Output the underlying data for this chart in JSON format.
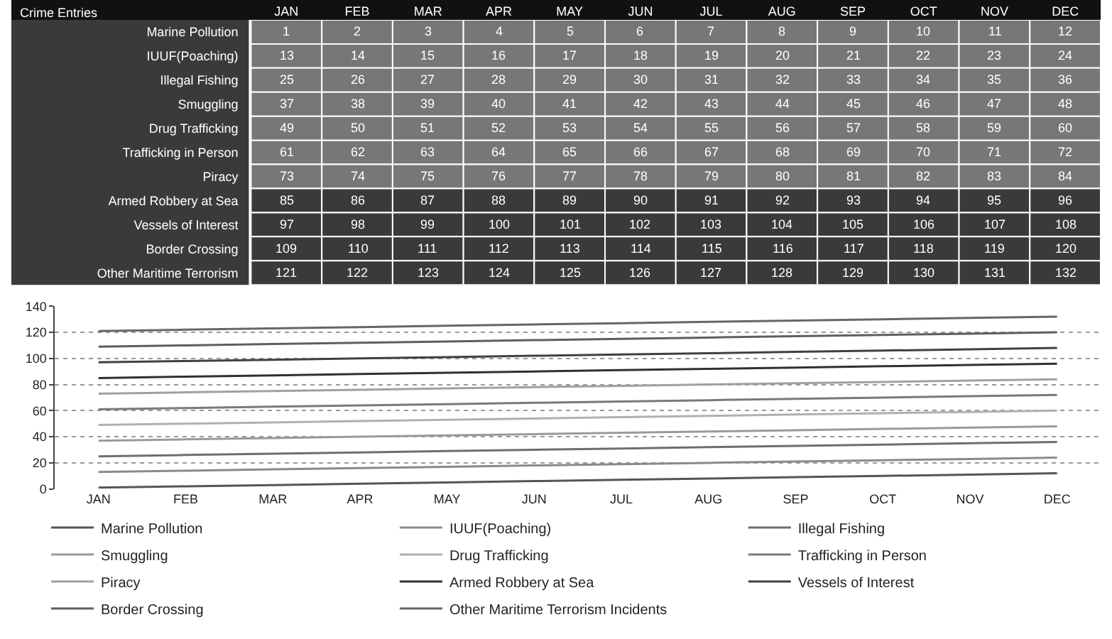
{
  "chart_data": [
    {
      "type": "heatmap",
      "annotations": [
        "Crime Entries"
      ],
      "data_labels": true,
      "categories": [
        "JAN",
        "FEB",
        "MAR",
        "APR",
        "MAY",
        "JUN",
        "JUL",
        "AUG",
        "SEP",
        "OCT",
        "NOV",
        "DEC"
      ],
      "y_categories": [
        "Marine Pollution",
        "IUUF(Poaching)",
        "Illegal Fishing",
        "Smuggling",
        "Drug Trafficking",
        "Trafficking in Person",
        "Piracy",
        "Armed Robbery at Sea",
        "Vessels of Interest",
        "Border Crossing",
        "Other Maritime Terrorism"
      ],
      "cells": [
        [
          1,
          2,
          3,
          4,
          5,
          6,
          7,
          8,
          9,
          10,
          11,
          12
        ],
        [
          13,
          14,
          15,
          16,
          17,
          18,
          19,
          20,
          21,
          22,
          23,
          24
        ],
        [
          25,
          26,
          27,
          28,
          29,
          30,
          31,
          32,
          33,
          34,
          35,
          36
        ],
        [
          37,
          38,
          39,
          40,
          41,
          42,
          43,
          44,
          45,
          46,
          47,
          48
        ],
        [
          49,
          50,
          51,
          52,
          53,
          54,
          55,
          56,
          57,
          58,
          59,
          60
        ],
        [
          61,
          62,
          63,
          64,
          65,
          66,
          67,
          68,
          69,
          70,
          71,
          72
        ],
        [
          73,
          74,
          75,
          76,
          77,
          78,
          79,
          80,
          81,
          82,
          83,
          84
        ],
        [
          85,
          86,
          87,
          88,
          89,
          90,
          91,
          92,
          93,
          94,
          95,
          96
        ],
        [
          97,
          98,
          99,
          100,
          101,
          102,
          103,
          104,
          105,
          106,
          107,
          108
        ],
        [
          109,
          110,
          111,
          112,
          113,
          114,
          115,
          116,
          117,
          118,
          119,
          120
        ],
        [
          121,
          122,
          123,
          124,
          125,
          126,
          127,
          128,
          129,
          130,
          131,
          132
        ]
      ]
    },
    {
      "type": "line",
      "categories": [
        "JAN",
        "FEB",
        "MAR",
        "APR",
        "MAY",
        "JUN",
        "JUL",
        "AUG",
        "SEP",
        "OCT",
        "NOV",
        "DEC"
      ],
      "series": [
        {
          "name": "Marine Pollution",
          "color": "#555555",
          "values": [
            1,
            2,
            3,
            4,
            5,
            6,
            7,
            8,
            9,
            10,
            11,
            12
          ]
        },
        {
          "name": "IUUF(Poaching)",
          "color": "#8a8a8a",
          "values": [
            13,
            14,
            15,
            16,
            17,
            18,
            19,
            20,
            21,
            22,
            23,
            24
          ]
        },
        {
          "name": "Illegal Fishing",
          "color": "#6e6e6e",
          "values": [
            25,
            26,
            27,
            28,
            29,
            30,
            31,
            32,
            33,
            34,
            35,
            36
          ]
        },
        {
          "name": "Smuggling",
          "color": "#9a9a9a",
          "values": [
            37,
            38,
            39,
            40,
            41,
            42,
            43,
            44,
            45,
            46,
            47,
            48
          ]
        },
        {
          "name": "Drug Trafficking",
          "color": "#b0b0b0",
          "values": [
            49,
            50,
            51,
            52,
            53,
            54,
            55,
            56,
            57,
            58,
            59,
            60
          ]
        },
        {
          "name": "Trafficking in Person",
          "color": "#7a7a7a",
          "values": [
            61,
            62,
            63,
            64,
            65,
            66,
            67,
            68,
            69,
            70,
            71,
            72
          ]
        },
        {
          "name": "Piracy",
          "color": "#a0a0a0",
          "values": [
            73,
            74,
            75,
            76,
            77,
            78,
            79,
            80,
            81,
            82,
            83,
            84
          ]
        },
        {
          "name": "Armed Robbery at Sea",
          "color": "#303030",
          "values": [
            85,
            86,
            87,
            88,
            89,
            90,
            91,
            92,
            93,
            94,
            95,
            96
          ]
        },
        {
          "name": "Vessels of Interest",
          "color": "#404040",
          "values": [
            97,
            98,
            99,
            100,
            101,
            102,
            103,
            104,
            105,
            106,
            107,
            108
          ]
        },
        {
          "name": "Border Crossing",
          "color": "#5e5e5e",
          "values": [
            109,
            110,
            111,
            112,
            113,
            114,
            115,
            116,
            117,
            118,
            119,
            120
          ]
        },
        {
          "name": "Other Maritime Terrorism Incidents",
          "color": "#666666",
          "values": [
            121,
            122,
            123,
            124,
            125,
            126,
            127,
            128,
            129,
            130,
            131,
            132
          ]
        }
      ],
      "ylim": [
        0,
        140
      ],
      "yticks": [
        0,
        20,
        40,
        60,
        80,
        100,
        120,
        140
      ],
      "grid": "y",
      "legend": "bottom",
      "marker": "none",
      "line_style": "solid"
    }
  ]
}
